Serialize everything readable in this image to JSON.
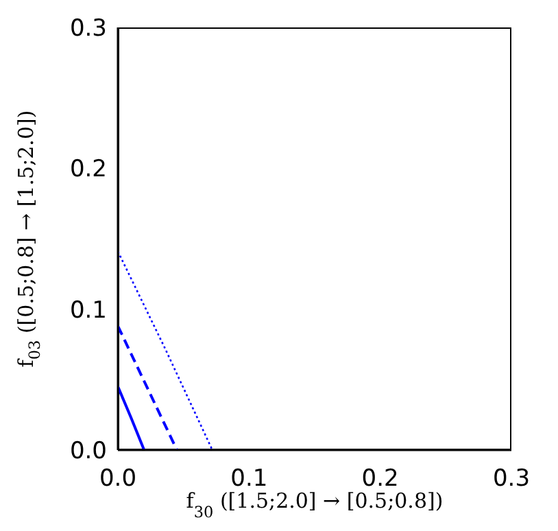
{
  "chart_data": {
    "type": "line",
    "xlabel": "f$_{30}$   ([1.5;2.0] → [0.5;0.8])",
    "ylabel": "f$_{03}$   ([0.5;0.8] → [1.5;2.0])",
    "xlim": [
      0,
      0.3
    ],
    "ylim": [
      0,
      0.3
    ],
    "xticks": [
      {
        "value": 0,
        "label": "0.0"
      },
      0.1,
      0.2,
      0.3
    ],
    "yticks": [
      {
        "value": 0,
        "label": "0.0"
      },
      0.1,
      0.2,
      0.3
    ],
    "grid": false,
    "legend": false,
    "marker": "none",
    "series": [
      {
        "color": "#0000ff",
        "line_style": "solid",
        "x": [
          0,
          0.01,
          0.02
        ],
        "values": [
          0.045,
          0.023,
          0
        ]
      },
      {
        "color": "#0000ff",
        "line_style": "dashed",
        "x": [
          0,
          0.022,
          0.045
        ],
        "values": [
          0.088,
          0.045,
          0
        ]
      },
      {
        "color": "#0000ff",
        "line_style": "dotted",
        "x": [
          0,
          0.036,
          0.072
        ],
        "values": [
          0.141,
          0.072,
          0
        ]
      }
    ]
  }
}
